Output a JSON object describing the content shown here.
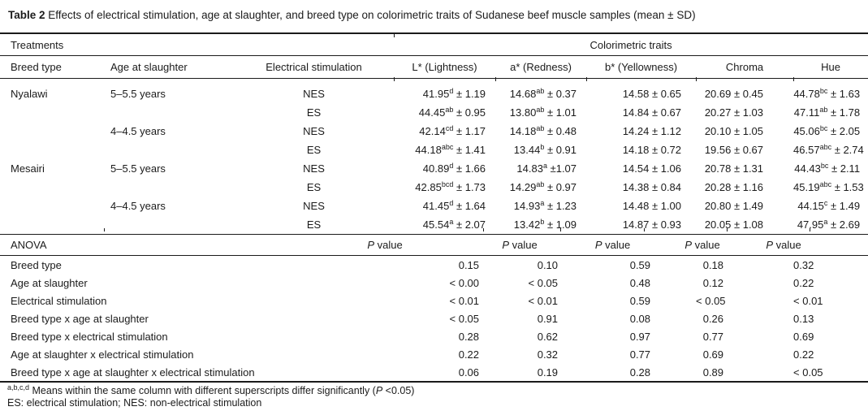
{
  "title": {
    "label": "Table 2",
    "text": " Effects of electrical stimulation, age at slaughter, and breed type on colorimetric traits of Sudanese beef muscle samples (mean ± SD)"
  },
  "header": {
    "treatments_label": "Treatments",
    "colorimetric_label": "Colorimetric traits",
    "columns": [
      "Breed type",
      "Age at slaughter",
      "Electrical stimulation",
      "L* (Lightness)",
      "a* (Redness)",
      "b* (Yellowness)",
      "Chroma",
      "Hue"
    ]
  },
  "rows": [
    {
      "breed": "Nyalawi",
      "age": "5–5.5 years",
      "stim": "NES",
      "L": {
        "m": "41.95",
        "s": "d",
        "e": "1.19"
      },
      "a": {
        "m": "14.68",
        "s": "ab",
        "e": "0.37"
      },
      "b": {
        "m": "14.58",
        "s": "",
        "e": "0.65"
      },
      "chroma": {
        "m": "20.69",
        "s": "",
        "e": "0.45"
      },
      "hue": {
        "m": "44.78",
        "s": "bc",
        "e": "1.63"
      }
    },
    {
      "breed": "",
      "age": "",
      "stim": "ES",
      "L": {
        "m": "44.45",
        "s": "ab",
        "e": "0.95"
      },
      "a": {
        "m": "13.80",
        "s": "ab",
        "e": "1.01"
      },
      "b": {
        "m": "14.84",
        "s": "",
        "e": "0.67"
      },
      "chroma": {
        "m": "20.27",
        "s": "",
        "e": "1.03"
      },
      "hue": {
        "m": "47.11",
        "s": "ab",
        "e": "1.78"
      }
    },
    {
      "breed": "",
      "age": "4–4.5 years",
      "stim": "NES",
      "L": {
        "m": "42.14",
        "s": "cd",
        "e": "1.17"
      },
      "a": {
        "m": "14.18",
        "s": "ab",
        "e": "0.48"
      },
      "b": {
        "m": "14.24",
        "s": "",
        "e": "1.12"
      },
      "chroma": {
        "m": "20.10",
        "s": "",
        "e": "1.05"
      },
      "hue": {
        "m": "45.06",
        "s": "bc",
        "e": "2.05"
      }
    },
    {
      "breed": "",
      "age": "",
      "stim": "ES",
      "L": {
        "m": "44.18",
        "s": "abc",
        "e": "1.41"
      },
      "a": {
        "m": "13.44",
        "s": "b",
        "e": "0.91"
      },
      "b": {
        "m": "14.18",
        "s": "",
        "e": "0.72"
      },
      "chroma": {
        "m": "19.56",
        "s": "",
        "e": "0.67"
      },
      "hue": {
        "m": "46.57",
        "s": "abc",
        "e": "2.74"
      }
    },
    {
      "breed": "Mesairi",
      "age": "5–5.5 years",
      "stim": "NES",
      "L": {
        "m": "40.89",
        "s": "d",
        "e": "1.66"
      },
      "a": {
        "m": "14.83",
        "s": "a",
        "e": "1.07",
        "pm": " ±"
      },
      "b": {
        "m": "14.54",
        "s": "",
        "e": "1.06"
      },
      "chroma": {
        "m": "20.78",
        "s": "",
        "e": "1.31"
      },
      "hue": {
        "m": "44.43",
        "s": "bc",
        "e": "2.11"
      }
    },
    {
      "breed": "",
      "age": "",
      "stim": "ES",
      "L": {
        "m": "42.85",
        "s": "bcd",
        "e": "1.73"
      },
      "a": {
        "m": "14.29",
        "s": "ab",
        "e": "0.97"
      },
      "b": {
        "m": "14.38",
        "s": "",
        "e": "0.84"
      },
      "chroma": {
        "m": "20.28",
        "s": "",
        "e": "1.16"
      },
      "hue": {
        "m": "45.19",
        "s": "abc",
        "e": "1.53"
      }
    },
    {
      "breed": "",
      "age": "4–4.5 years",
      "stim": "NES",
      "L": {
        "m": "41.45",
        "s": "d",
        "e": "1.64"
      },
      "a": {
        "m": "14.93",
        "s": "a",
        "e": "1.23"
      },
      "b": {
        "m": "14.48",
        "s": "",
        "e": "1.00"
      },
      "chroma": {
        "m": "20.80",
        "s": "",
        "e": "1.49"
      },
      "hue": {
        "m": "44.15",
        "s": "c",
        "e": "1.49"
      }
    },
    {
      "breed": "",
      "age": "",
      "stim": "ES",
      "L": {
        "m": "45.54",
        "s": "a",
        "e": "2.07"
      },
      "a": {
        "m": "13.42",
        "s": "b",
        "e": "1.09"
      },
      "b": {
        "m": "14.87",
        "s": "",
        "e": "0.93"
      },
      "chroma": {
        "m": "20.05",
        "s": "",
        "e": "1.08"
      },
      "hue": {
        "m": "47.95",
        "s": "a",
        "e": "2.69"
      }
    }
  ],
  "anova": {
    "label": "ANOVA",
    "pvalue": {
      "italic": "P",
      "rest": " value"
    },
    "rows": [
      {
        "label": "Breed type",
        "p": [
          "0.15",
          "0.10",
          "0.59",
          "0.18",
          "0.32"
        ]
      },
      {
        "label": "Age at slaughter",
        "p": [
          "< 0.00",
          "< 0.05",
          "0.48",
          "0.12",
          "0.22"
        ]
      },
      {
        "label": "Electrical stimulation",
        "p": [
          "< 0.01",
          "< 0.01",
          "0.59",
          "< 0.05",
          "< 0.01"
        ]
      },
      {
        "label": "Breed type x age at slaughter",
        "p": [
          "< 0.05",
          "0.91",
          "0.08",
          "0.26",
          "0.13"
        ]
      },
      {
        "label": "Breed type x electrical stimulation",
        "p": [
          "0.28",
          "0.62",
          "0.97",
          "0.77",
          "0.69"
        ]
      },
      {
        "label": "Age at slaughter x electrical stimulation",
        "p": [
          "0.22",
          "0.32",
          "0.77",
          "0.69",
          "0.22"
        ]
      },
      {
        "label": "Breed type x age at slaughter x electrical stimulation",
        "p": [
          "0.06",
          "0.19",
          "0.28",
          "0.89",
          "< 0.05"
        ]
      }
    ]
  },
  "footnotes": {
    "sup": "a,b,c,d",
    "line1_pre": " Means within the same column with different superscripts differ significantly (",
    "line1_italic": "P",
    "line1_post": " <0.05)",
    "line2": "ES: electrical stimulation; NES: non-electrical stimulation"
  },
  "colors": {
    "text": "#1b1b1b",
    "background": "#ffffff",
    "rule": "#1b1b1b"
  }
}
